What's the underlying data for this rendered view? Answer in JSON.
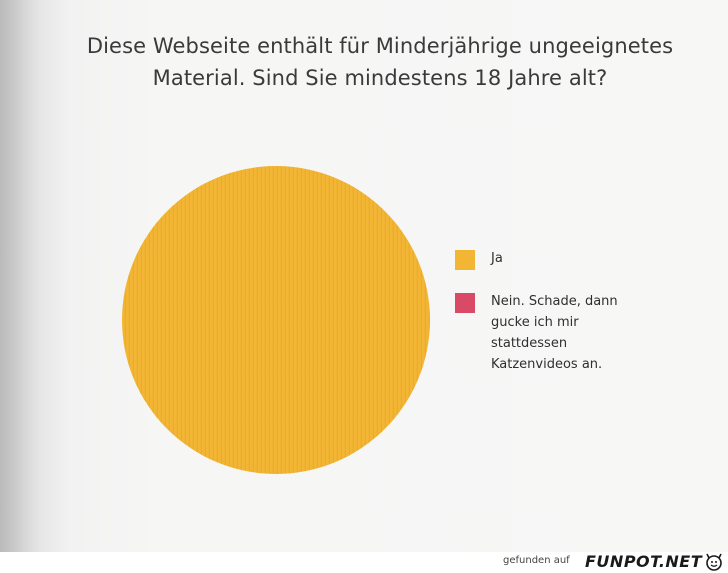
{
  "title_lines": [
    "Diese Webseite enthält für Minderjährige ungeeignetes",
    "Material. Sind Sie mindestens 18 Jahre alt?"
  ],
  "chart_data": {
    "type": "pie",
    "title": "Diese Webseite enthält für Minderjährige ungeeignetes Material. Sind Sie mindestens 18 Jahre alt?",
    "categories": [
      "Ja",
      "Nein. Schade, dann\ngucke ich mir\nstattdessen\nKatzenvideos an."
    ],
    "values": [
      100,
      0
    ],
    "colors": [
      "#f2b534",
      "#d94a66"
    ],
    "legend_position": "right"
  },
  "footer": {
    "caption": "gefunden auf",
    "brand": "FUNPOT.NET"
  }
}
